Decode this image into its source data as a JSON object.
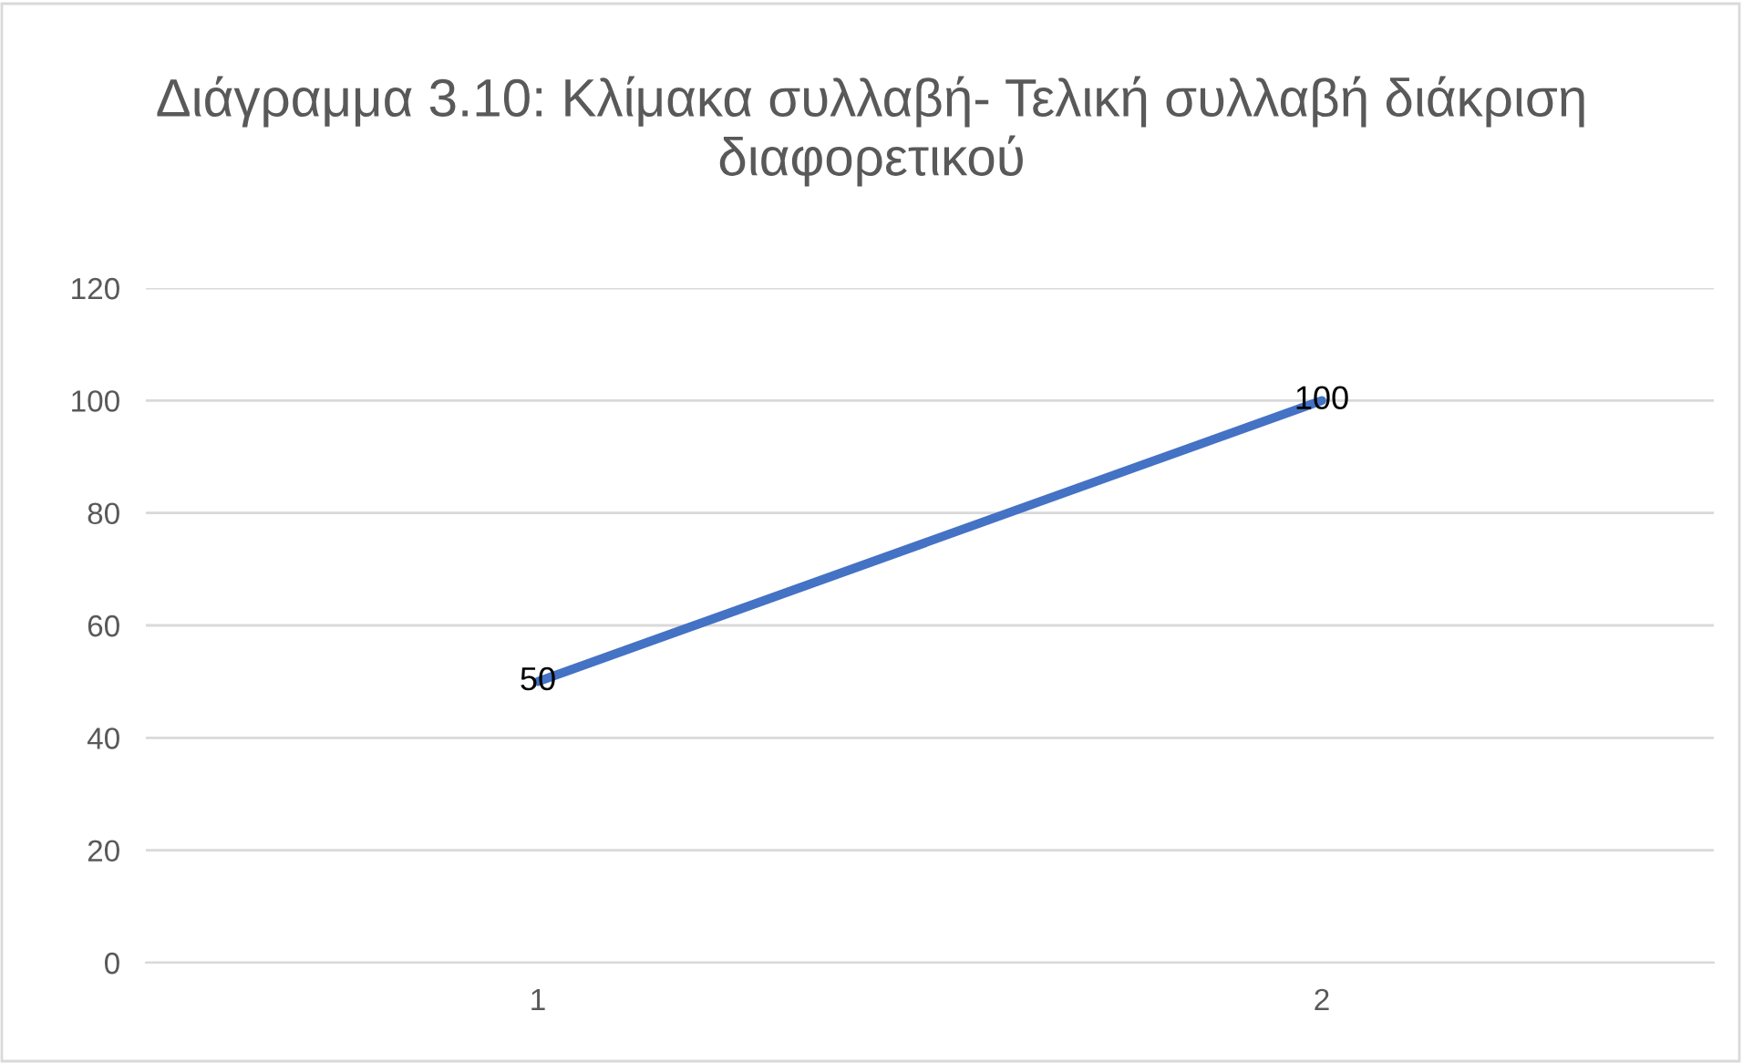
{
  "chart_data": {
    "type": "line",
    "title": "Διάγραμμα 3.10: Κλίμακα συλλαβή- Τελική συλλαβή διάκριση διαφορετικού",
    "categories": [
      "1",
      "2"
    ],
    "series": [
      {
        "color": "#4472c4",
        "values": [
          50,
          100
        ]
      }
    ],
    "ylim": [
      0,
      120
    ],
    "yticks": [
      0,
      20,
      40,
      60,
      80,
      100,
      120
    ],
    "grid": "y",
    "data_labels": true,
    "legend": false,
    "marker": "none"
  }
}
